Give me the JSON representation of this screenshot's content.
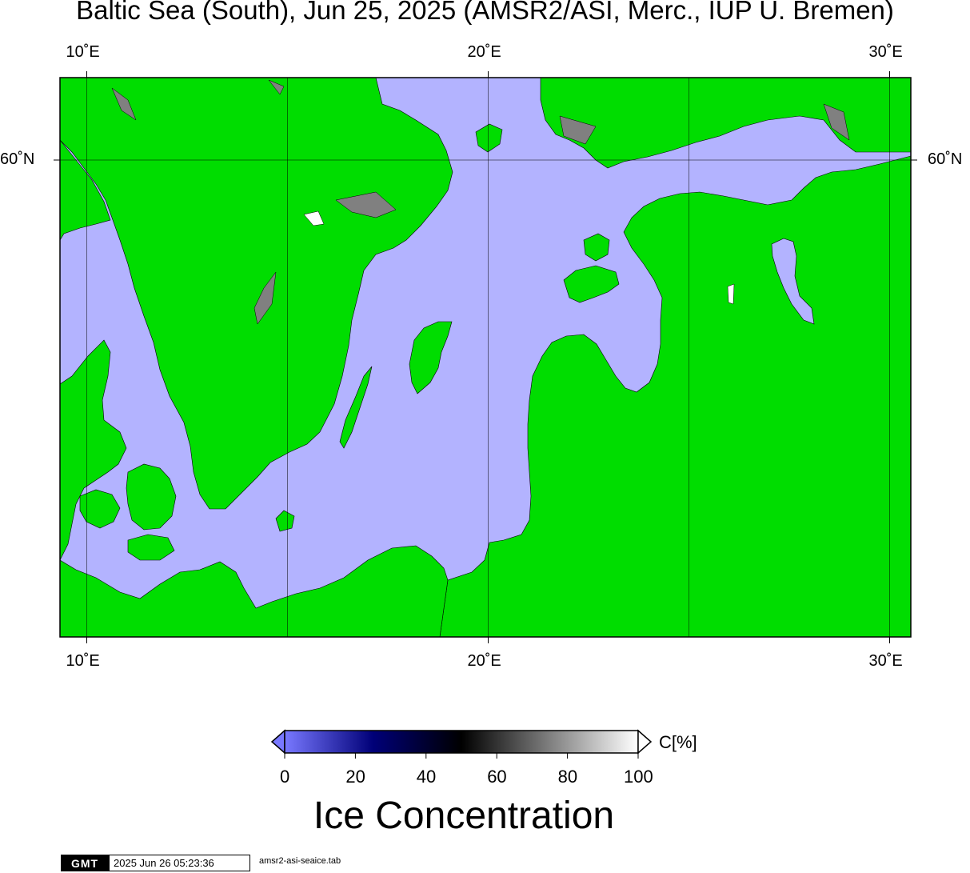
{
  "title": "Baltic Sea (South), Jun 25, 2025 (AMSR2/ASI, Merc., IUP U. Bremen)",
  "map": {
    "region": "Baltic Sea (South)",
    "date": "Jun 25, 2025",
    "projection": "Merc.",
    "lon_ticks": [
      {
        "value": 10,
        "label": "10˚E"
      },
      {
        "value": 20,
        "label": "20˚E"
      },
      {
        "value": 30,
        "label": "30˚E"
      }
    ],
    "lat_ticks": [
      {
        "value": 60,
        "label": "60˚N"
      }
    ],
    "colors": {
      "land": "#00dd00",
      "open_water": "#b3b3ff",
      "no_data": "#808080",
      "frame": "#000000"
    }
  },
  "colorbar": {
    "unit_label": "C[%]",
    "range": [
      0,
      100
    ],
    "tick_labels": [
      "0",
      "20",
      "40",
      "60",
      "80",
      "100"
    ],
    "gradient_stops": [
      {
        "value": 0,
        "color": "#7878ff"
      },
      {
        "value": 25,
        "color": "#000078"
      },
      {
        "value": 50,
        "color": "#000000"
      },
      {
        "value": 75,
        "color": "#7f7f7f"
      },
      {
        "value": 100,
        "color": "#ffffff"
      }
    ],
    "title": "Ice Concentration"
  },
  "footer": {
    "logo": "GMT",
    "timestamp": "2025 Jun 26 05:23:36",
    "filename": "amsr2-asi-seaice.tab"
  }
}
